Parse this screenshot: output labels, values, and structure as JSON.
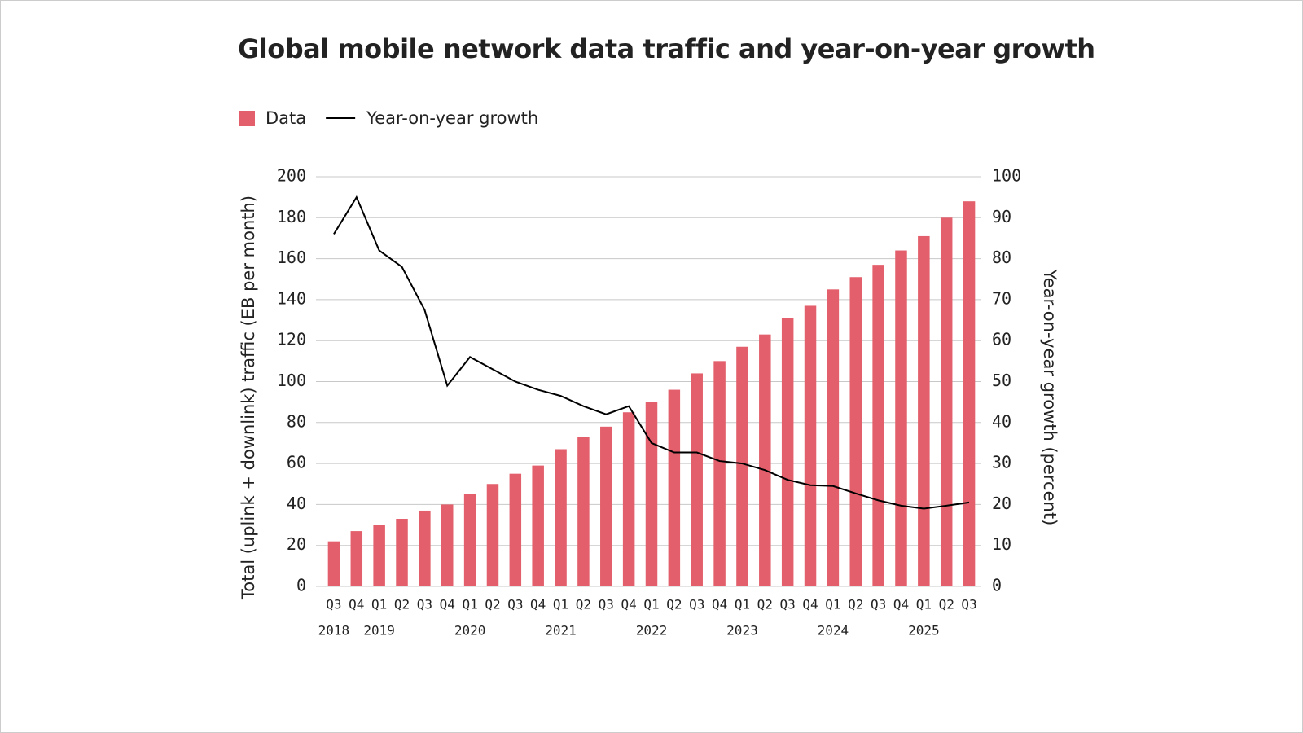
{
  "chart_data": {
    "type": "combo",
    "title": "Global mobile network data traffic and year-on-year growth",
    "y_label": "Total (uplink + downlink) traffic (EB per month)",
    "y2_label": "Year-on-year growth (percent)",
    "categories": [
      "Q3",
      "Q4",
      "Q1",
      "Q2",
      "Q3",
      "Q4",
      "Q1",
      "Q2",
      "Q3",
      "Q4",
      "Q1",
      "Q2",
      "Q3",
      "Q4",
      "Q1",
      "Q2",
      "Q3",
      "Q4",
      "Q1",
      "Q2",
      "Q3",
      "Q4",
      "Q1",
      "Q2",
      "Q3",
      "Q4",
      "Q1",
      "Q2",
      "Q3"
    ],
    "years": [
      "2018",
      null,
      "2019",
      null,
      null,
      null,
      "2020",
      null,
      null,
      null,
      "2021",
      null,
      null,
      null,
      "2022",
      null,
      null,
      null,
      "2023",
      null,
      null,
      null,
      "2024",
      null,
      null,
      null,
      "2025",
      null,
      null
    ],
    "series": [
      {
        "name": "Data",
        "type": "bar",
        "color": "#e35f6b",
        "values": [
          22,
          27,
          30,
          33,
          37,
          40,
          45,
          50,
          55,
          59,
          67,
          73,
          78,
          85,
          90,
          96,
          104,
          110,
          117,
          123,
          131,
          137,
          145,
          151,
          157,
          164,
          171,
          180,
          188
        ]
      },
      {
        "name": "Year-on-year growth",
        "type": "line",
        "color": "#000000",
        "axis": "y2",
        "values": [
          86,
          95,
          82,
          78,
          67.5,
          49,
          56,
          53,
          50,
          48,
          46.5,
          44,
          42,
          44,
          35,
          32.7,
          32.7,
          30.6,
          30,
          28.4,
          26,
          24.7,
          24.5,
          22.7,
          21,
          19.7,
          19,
          19.7,
          20.5
        ]
      }
    ],
    "ylim": [
      0,
      200
    ],
    "yticks": [
      0,
      20,
      40,
      60,
      80,
      100,
      120,
      140,
      160,
      180,
      200
    ],
    "y2lim": [
      0,
      100
    ],
    "y2ticks": [
      0,
      10,
      20,
      30,
      40,
      50,
      60,
      70,
      80,
      90,
      100
    ],
    "grid": true
  }
}
